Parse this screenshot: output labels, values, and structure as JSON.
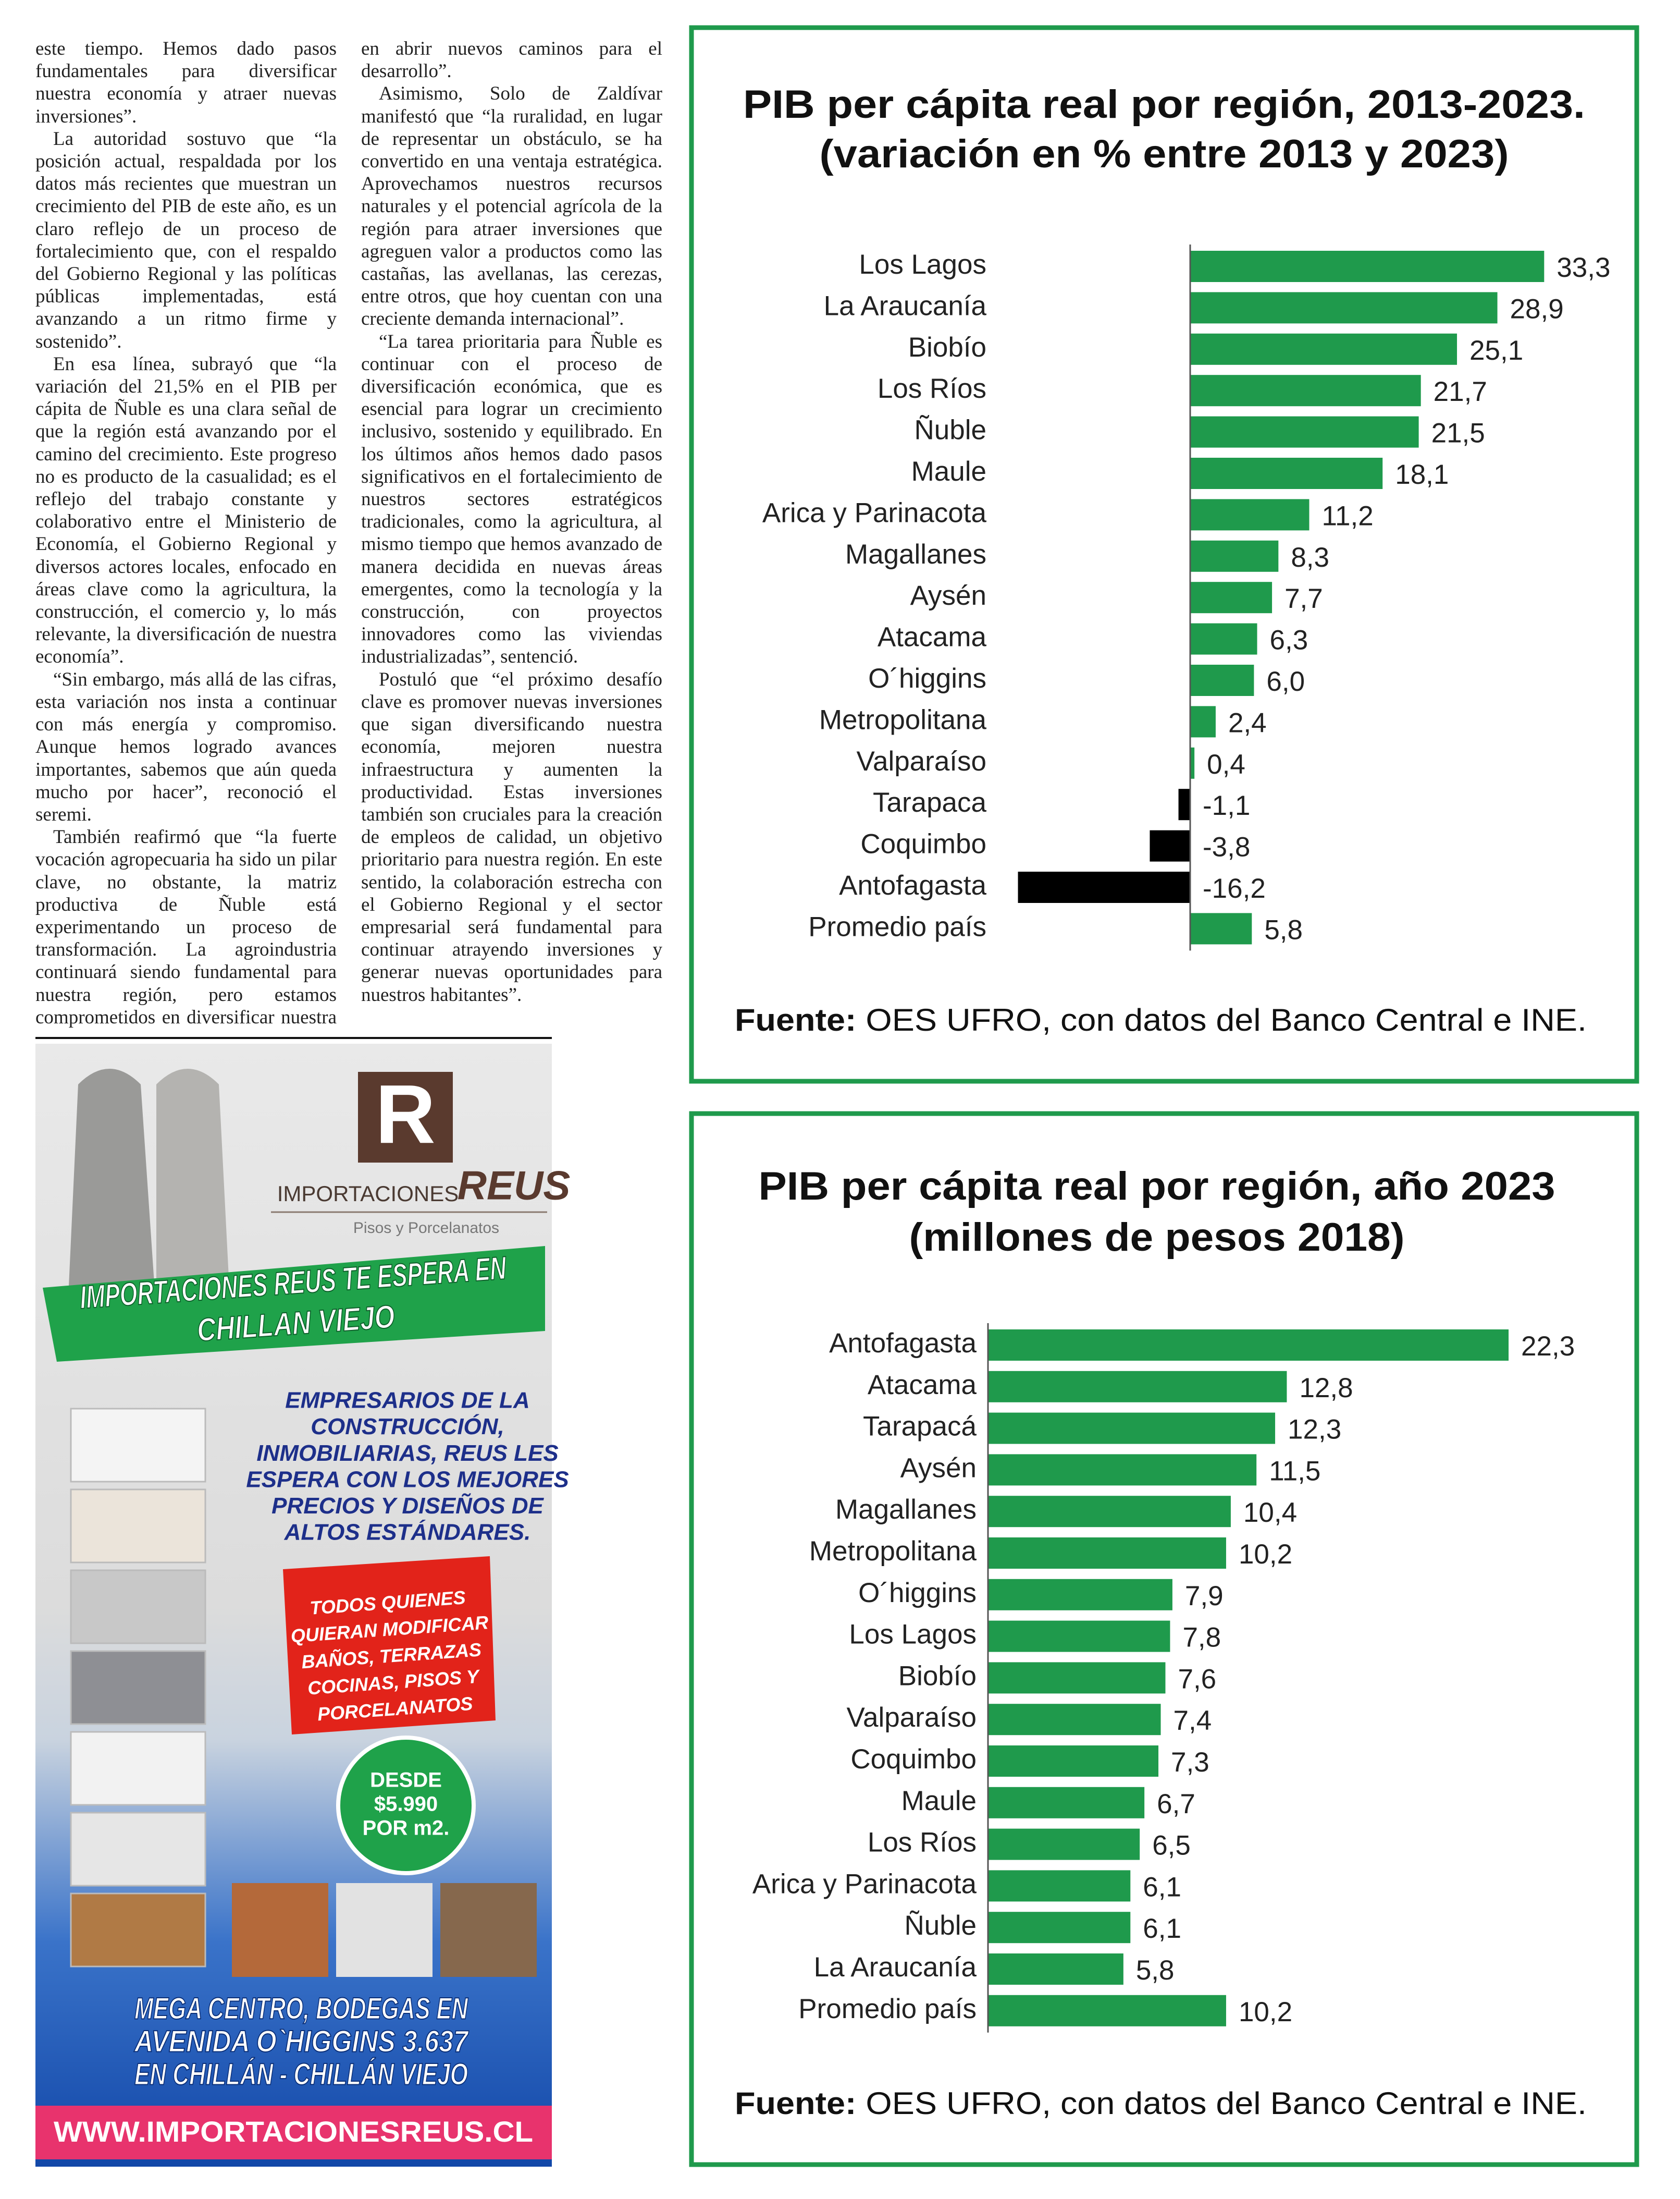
{
  "article": {
    "columns": [
      [
        "este tiempo. Hemos dado pasos fundamentales para diversificar nuestra economía y atraer nuevas inversiones”.",
        "La autoridad sostuvo que “la posición actual, respaldada por los datos más recientes que muestran un crecimiento del PIB de este año, es un claro reflejo de un proceso de fortalecimiento que, con el respaldo del Gobierno Regional y las políticas públicas implementadas, está avanzando a un ritmo firme y sostenido”.",
        "En esa línea, subrayó que “la variación del 21,5% en el PIB per cápita de Ñuble es una clara señal de que la región está avanzando por el camino del crecimiento. Este progreso no es producto de la casualidad; es el reflejo del trabajo constante y colaborativo entre el Ministerio de Economía, el Gobierno Regional y diversos actores locales, enfocado en áreas clave como la agricultura, la construcción, el comercio y, lo más relevante, la diversificación de nuestra economía”.",
        "“Sin embargo, más allá de las cifras, esta variación nos insta a continuar con más energía y compromiso. Aunque hemos logrado avances importantes, sabemos que aún queda mucho por hacer”, reconoció el seremi.",
        "También reafirmó que “la fuerte vocación agropecuaria ha sido un pilar clave, no obstante, la matriz productiva de Ñuble está experimentando un proceso de transformación. La agroindustria continuará siendo fundamental para nuestra región, pero estamos comprometidos en diversificar nuestra economía y"
      ],
      [
        "en abrir nuevos caminos para el desarrollo”.",
        "Asimismo, Solo de Zaldívar manifestó que “la ruralidad, en lugar de representar un obstáculo, se ha convertido en una ventaja estratégica. Aprovechamos nuestros recursos naturales y el potencial agrícola de la región para atraer inversiones que agreguen valor a productos como las castañas, las avellanas, las cerezas, entre otros, que hoy cuentan con una creciente demanda internacional”.",
        "“La tarea prioritaria para Ñuble es continuar con el proceso de diversificación económica, que es esencial para lograr un crecimiento inclusivo, sostenido y equilibrado. En los últimos años hemos dado pasos significativos en el fortalecimiento de nuestros sectores estratégicos tradicionales, como la agricultura, al mismo tiempo que hemos avanzado de manera decidida en nuevas áreas emergentes, como la tecnología y la construcción, con proyectos innovadores como las viviendas industrializadas”, sentenció.",
        "Postuló que “el próximo desafío clave es promover nuevas inversiones que sigan diversificando nuestra economía, mejoren nuestra infraestructura y aumenten la productividad. Estas inversiones también son cruciales para la creación de empleos de calidad, un objetivo prioritario para nuestra región. En este sentido, la colaboración estrecha con el Gobierno Regional y el sector empresarial será fundamental para continuar atrayendo inversiones y generar nuevas oportunidades para nuestros habitantes”."
      ]
    ]
  },
  "ad": {
    "logo_letter": "R",
    "brand": "IMPORTACIONES",
    "brand_mark": "REUS",
    "tagline": "Pisos y Porcelanatos",
    "banner": [
      "IMPORTACIONES REUS TE ESPERA EN",
      "CHILLAN VIEJO"
    ],
    "pitch": [
      "EMPRESARIOS DE LA",
      "CONSTRUCCIÓN,",
      "INMOBILIARIAS, REUS LES",
      "ESPERA CON LOS MEJORES",
      "PRECIOS Y DISEÑOS DE",
      "ALTOS ESTÁNDARES."
    ],
    "offer": [
      "TODOS QUIENES",
      "QUIERAN MODIFICAR",
      "BAÑOS, TERRAZAS",
      "COCINAS, PISOS Y",
      "PORCELANATOS"
    ],
    "price": [
      "DESDE",
      "$5.990",
      "POR m2."
    ],
    "address": [
      "MEGA CENTRO, BODEGAS EN",
      "AVENIDA O`HIGGINS 3.637",
      "EN CHILLÁN - CHILLÁN VIEJO"
    ],
    "website": "WWW.IMPORTACIONESREUS.CL"
  },
  "chart_data": [
    {
      "type": "bar",
      "orientation": "horizontal",
      "title": "PIB per cápita real por región, 2013-2023.",
      "subtitle": "(variación en % entre 2013 y 2023)",
      "categories": [
        "Los Lagos",
        "La Araucanía",
        "Biobío",
        "Los Ríos",
        "Ñuble",
        "Maule",
        "Arica y Parinacota",
        "Magallanes",
        "Aysén",
        "Atacama",
        "O´higgins",
        "Metropolitana",
        "Valparaíso",
        "Tarapaca",
        "Coquimbo",
        "Antofagasta",
        "Promedio país"
      ],
      "values": [
        33.3,
        28.9,
        25.1,
        21.7,
        21.5,
        18.1,
        11.2,
        8.3,
        7.7,
        6.3,
        6.0,
        2.4,
        0.4,
        -1.1,
        -3.8,
        -16.2,
        5.8
      ],
      "value_labels": [
        "33,3",
        "28,9",
        "25,1",
        "21,7",
        "21,5",
        "18,1",
        "11,2",
        "8,3",
        "7,7",
        "6,3",
        "6,0",
        "2,4",
        "0,4",
        "-1,1",
        "-3,8",
        "-16,2",
        "5,8"
      ],
      "color": "#1f9a4c",
      "negative_color": "#000000",
      "xlim": [
        -20,
        40
      ],
      "source_label": "Fuente:",
      "source": "OES UFRO, con datos del Banco Central e INE."
    },
    {
      "type": "bar",
      "orientation": "horizontal",
      "title": "PIB per cápita real por región, año 2023",
      "subtitle": "(millones de pesos 2018)",
      "categories": [
        "Antofagasta",
        "Atacama",
        "Tarapacá",
        "Aysén",
        "Magallanes",
        "Metropolitana",
        "O´higgins",
        "Los Lagos",
        "Biobío",
        "Valparaíso",
        "Coquimbo",
        "Maule",
        "Los Ríos",
        "Arica y Parinacota",
        "Ñuble",
        "La Araucanía",
        "Promedio país"
      ],
      "values": [
        22.3,
        12.8,
        12.3,
        11.5,
        10.4,
        10.2,
        7.9,
        7.8,
        7.6,
        7.4,
        7.3,
        6.7,
        6.5,
        6.1,
        6.1,
        5.8,
        10.2
      ],
      "value_labels": [
        "22,3",
        "12,8",
        "12,3",
        "11,5",
        "10,4",
        "10,2",
        "7,9",
        "7,8",
        "7,6",
        "7,4",
        "7,3",
        "6,7",
        "6,5",
        "6,1",
        "6,1",
        "5,8",
        "10,2"
      ],
      "color": "#1f9a4c",
      "negative_color": "#000000",
      "xlim": [
        0,
        25
      ],
      "source_label": "Fuente:",
      "source": "OES UFRO, con datos del Banco Central e INE."
    }
  ]
}
